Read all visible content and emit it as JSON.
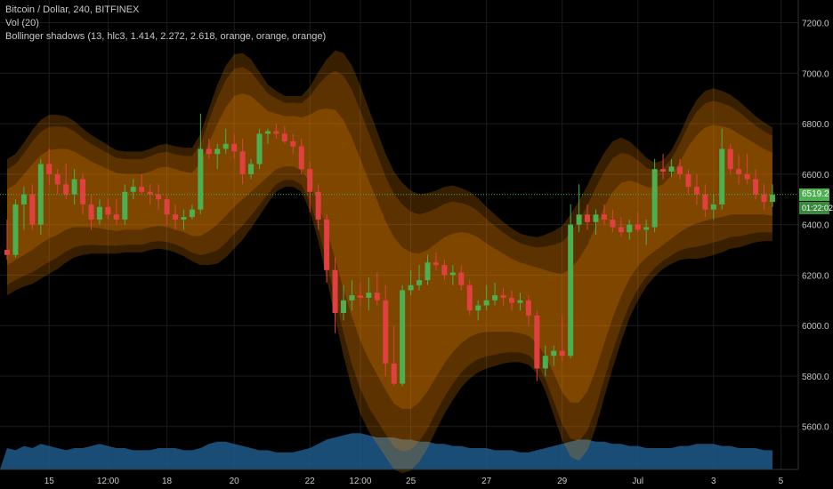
{
  "legend": {
    "line1": "Bitcoin / Dollar, 240, BITFINEX",
    "line2": "Vol (20)",
    "line3": "Bollinger shadows (13, hlc3, 1.414, 2.272, 2.618, orange, orange, orange)"
  },
  "price_badge": "6519.2",
  "countdown_badge": "01:22:02",
  "colors": {
    "up": "#4caf50",
    "down": "#e04040",
    "band": "#ff8c00",
    "volume": "#1f5b8a",
    "grid": "#1c1c1c",
    "axis_text": "#c8c8c8"
  },
  "chart_data": {
    "type": "candlestick",
    "symbol": "Bitcoin / Dollar",
    "interval": "240",
    "exchange": "BITFINEX",
    "ylim": [
      5430,
      7290
    ],
    "y_ticks": [
      5600,
      5800,
      6000,
      6200,
      6400,
      6600,
      6800,
      7000,
      7200
    ],
    "y_tick_labels": [
      "5600.0",
      "5800.0",
      "6000.0",
      "6200.0",
      "6400.0",
      "6600.0",
      "6800.0",
      "7000.0",
      "7200.0"
    ],
    "x_ticks": [
      {
        "label": "15",
        "bar": 5
      },
      {
        "label": "12:00",
        "bar": 12
      },
      {
        "label": "18",
        "bar": 19
      },
      {
        "label": "20",
        "bar": 27
      },
      {
        "label": "22",
        "bar": 36
      },
      {
        "label": "12:00",
        "bar": 42
      },
      {
        "label": "25",
        "bar": 48
      },
      {
        "label": "27",
        "bar": 57
      },
      {
        "label": "29",
        "bar": 66
      },
      {
        "label": "Jul",
        "bar": 75
      },
      {
        "label": "3",
        "bar": 84
      },
      {
        "label": "5",
        "bar": 92
      }
    ],
    "current_price": 6519.2,
    "ohlc": [
      [
        6300,
        6420,
        6260,
        6280
      ],
      [
        6280,
        6500,
        6270,
        6480
      ],
      [
        6480,
        6550,
        6380,
        6520
      ],
      [
        6520,
        6560,
        6380,
        6400
      ],
      [
        6400,
        6660,
        6360,
        6640
      ],
      [
        6640,
        6700,
        6560,
        6600
      ],
      [
        6600,
        6620,
        6520,
        6560
      ],
      [
        6560,
        6640,
        6500,
        6520
      ],
      [
        6520,
        6620,
        6480,
        6580
      ],
      [
        6580,
        6600,
        6440,
        6480
      ],
      [
        6480,
        6520,
        6380,
        6420
      ],
      [
        6420,
        6500,
        6400,
        6470
      ],
      [
        6470,
        6500,
        6420,
        6440
      ],
      [
        6440,
        6500,
        6400,
        6420
      ],
      [
        6420,
        6560,
        6400,
        6530
      ],
      [
        6530,
        6580,
        6500,
        6550
      ],
      [
        6550,
        6600,
        6520,
        6530
      ],
      [
        6530,
        6560,
        6480,
        6520
      ],
      [
        6520,
        6560,
        6460,
        6500
      ],
      [
        6500,
        6520,
        6400,
        6440
      ],
      [
        6440,
        6480,
        6380,
        6420
      ],
      [
        6420,
        6460,
        6380,
        6430
      ],
      [
        6430,
        6480,
        6420,
        6460
      ],
      [
        6460,
        6840,
        6440,
        6700
      ],
      [
        6700,
        6740,
        6660,
        6680
      ],
      [
        6680,
        6720,
        6620,
        6700
      ],
      [
        6700,
        6780,
        6680,
        6720
      ],
      [
        6720,
        6760,
        6660,
        6690
      ],
      [
        6690,
        6740,
        6560,
        6600
      ],
      [
        6600,
        6660,
        6580,
        6640
      ],
      [
        6640,
        6780,
        6620,
        6760
      ],
      [
        6760,
        6780,
        6720,
        6770
      ],
      [
        6770,
        6800,
        6740,
        6760
      ],
      [
        6760,
        6790,
        6720,
        6730
      ],
      [
        6730,
        6760,
        6680,
        6710
      ],
      [
        6710,
        6740,
        6600,
        6620
      ],
      [
        6620,
        6650,
        6450,
        6530
      ],
      [
        6530,
        6560,
        6380,
        6420
      ],
      [
        6420,
        6440,
        6170,
        6220
      ],
      [
        6220,
        6270,
        5970,
        6050
      ],
      [
        6050,
        6160,
        6020,
        6100
      ],
      [
        6100,
        6180,
        6060,
        6120
      ],
      [
        6120,
        6170,
        6080,
        6110
      ],
      [
        6110,
        6190,
        6060,
        6130
      ],
      [
        6130,
        6210,
        6080,
        6100
      ],
      [
        6100,
        6160,
        5800,
        5850
      ],
      [
        5850,
        6000,
        5760,
        5770
      ],
      [
        5770,
        6160,
        5760,
        6140
      ],
      [
        6140,
        6220,
        6120,
        6160
      ],
      [
        6160,
        6240,
        6140,
        6180
      ],
      [
        6180,
        6280,
        6160,
        6250
      ],
      [
        6250,
        6290,
        6220,
        6240
      ],
      [
        6240,
        6260,
        6180,
        6200
      ],
      [
        6200,
        6240,
        6160,
        6210
      ],
      [
        6210,
        6240,
        6140,
        6160
      ],
      [
        6160,
        6180,
        6040,
        6060
      ],
      [
        6060,
        6100,
        6020,
        6080
      ],
      [
        6080,
        6160,
        6060,
        6100
      ],
      [
        6100,
        6170,
        6080,
        6120
      ],
      [
        6120,
        6150,
        6080,
        6110
      ],
      [
        6110,
        6140,
        6060,
        6090
      ],
      [
        6090,
        6130,
        6060,
        6100
      ],
      [
        6100,
        6120,
        6000,
        6040
      ],
      [
        6040,
        6060,
        5780,
        5830
      ],
      [
        5830,
        5920,
        5800,
        5880
      ],
      [
        5880,
        5920,
        5840,
        5900
      ],
      [
        5900,
        6040,
        5860,
        5880
      ],
      [
        5880,
        6480,
        5870,
        6400
      ],
      [
        6400,
        6560,
        6370,
        6440
      ],
      [
        6440,
        6480,
        6380,
        6410
      ],
      [
        6410,
        6460,
        6360,
        6440
      ],
      [
        6440,
        6480,
        6400,
        6420
      ],
      [
        6420,
        6460,
        6370,
        6390
      ],
      [
        6390,
        6430,
        6350,
        6370
      ],
      [
        6370,
        6420,
        6340,
        6400
      ],
      [
        6400,
        6450,
        6370,
        6380
      ],
      [
        6380,
        6420,
        6320,
        6390
      ],
      [
        6390,
        6660,
        6370,
        6620
      ],
      [
        6620,
        6680,
        6580,
        6610
      ],
      [
        6610,
        6660,
        6590,
        6630
      ],
      [
        6630,
        6660,
        6580,
        6600
      ],
      [
        6600,
        6620,
        6520,
        6550
      ],
      [
        6550,
        6600,
        6480,
        6520
      ],
      [
        6520,
        6560,
        6430,
        6460
      ],
      [
        6460,
        6520,
        6420,
        6480
      ],
      [
        6480,
        6780,
        6460,
        6700
      ],
      [
        6700,
        6720,
        6600,
        6620
      ],
      [
        6620,
        6680,
        6560,
        6600
      ],
      [
        6600,
        6680,
        6560,
        6580
      ],
      [
        6580,
        6620,
        6500,
        6520
      ],
      [
        6520,
        6560,
        6460,
        6490
      ],
      [
        6490,
        6560,
        6470,
        6519
      ]
    ],
    "band_mid": [
      6390,
      6410,
      6440,
      6470,
      6500,
      6520,
      6530,
      6540,
      6540,
      6530,
      6520,
      6510,
      6500,
      6490,
      6490,
      6490,
      6490,
      6500,
      6510,
      6510,
      6500,
      6490,
      6480,
      6500,
      6550,
      6600,
      6650,
      6690,
      6710,
      6720,
      6720,
      6720,
      6730,
      6730,
      6730,
      6720,
      6700,
      6670,
      6620,
      6560,
      6480,
      6390,
      6300,
      6220,
      6150,
      6080,
      6020,
      5990,
      5980,
      5990,
      6020,
      6060,
      6100,
      6130,
      6150,
      6160,
      6160,
      6150,
      6140,
      6130,
      6120,
      6110,
      6100,
      6080,
      6050,
      6010,
      5970,
      5960,
      5980,
      6030,
      6110,
      6200,
      6280,
      6340,
      6380,
      6400,
      6410,
      6420,
      6440,
      6470,
      6510,
      6550,
      6580,
      6600,
      6610,
      6610,
      6610,
      6600,
      6590,
      6580,
      6570,
      6560
    ],
    "band_inner_width": [
      150,
      150,
      160,
      170,
      175,
      175,
      170,
      160,
      150,
      140,
      130,
      125,
      120,
      115,
      110,
      110,
      110,
      110,
      115,
      120,
      120,
      120,
      125,
      145,
      175,
      200,
      215,
      220,
      210,
      190,
      160,
      130,
      110,
      100,
      100,
      105,
      135,
      185,
      240,
      295,
      335,
      355,
      360,
      355,
      345,
      335,
      330,
      320,
      310,
      295,
      280,
      265,
      250,
      235,
      220,
      205,
      190,
      175,
      165,
      155,
      145,
      140,
      140,
      150,
      170,
      200,
      235,
      265,
      285,
      290,
      285,
      270,
      250,
      225,
      195,
      165,
      140,
      125,
      120,
      125,
      140,
      160,
      175,
      185,
      185,
      180,
      170,
      160,
      150,
      140,
      130,
      125
    ],
    "band_outer_width": [
      270,
      270,
      285,
      305,
      315,
      315,
      305,
      290,
      270,
      250,
      235,
      225,
      215,
      205,
      200,
      200,
      200,
      200,
      205,
      210,
      210,
      215,
      225,
      260,
      310,
      355,
      380,
      385,
      370,
      335,
      285,
      235,
      200,
      180,
      180,
      190,
      245,
      335,
      435,
      530,
      600,
      640,
      650,
      640,
      620,
      600,
      590,
      575,
      555,
      530,
      505,
      475,
      450,
      425,
      395,
      370,
      345,
      320,
      300,
      280,
      265,
      255,
      255,
      270,
      310,
      365,
      425,
      480,
      515,
      525,
      515,
      485,
      450,
      405,
      350,
      300,
      255,
      225,
      215,
      225,
      250,
      285,
      315,
      330,
      330,
      320,
      305,
      290,
      270,
      250,
      235,
      225
    ],
    "volume": [
      10,
      9,
      11,
      10,
      12,
      11,
      10,
      9,
      10,
      10,
      11,
      12,
      11,
      10,
      10,
      9,
      9,
      9,
      10,
      10,
      10,
      9,
      9,
      10,
      12,
      13,
      13,
      12,
      11,
      10,
      9,
      9,
      8,
      8,
      8,
      9,
      10,
      12,
      14,
      15,
      16,
      17,
      17,
      16,
      15,
      15,
      15,
      14,
      14,
      13,
      13,
      12,
      12,
      11,
      11,
      10,
      10,
      10,
      9,
      9,
      9,
      8,
      8,
      9,
      10,
      11,
      12,
      13,
      14,
      14,
      13,
      13,
      12,
      12,
      11,
      11,
      10,
      10,
      10,
      10,
      11,
      11,
      12,
      12,
      12,
      11,
      11,
      10,
      10,
      10,
      9,
      9
    ]
  }
}
